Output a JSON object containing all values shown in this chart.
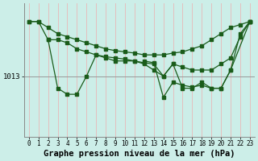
{
  "title": "Graphe pression niveau de la mer (hPa)",
  "background_color": "#cceee8",
  "line_color": "#1a5c1a",
  "grid_color": "#e8b8b8",
  "hline_color": "#999999",
  "hline_value": 1013,
  "x_labels": [
    "0",
    "1",
    "2",
    "3",
    "4",
    "5",
    "6",
    "7",
    "8",
    "9",
    "10",
    "11",
    "12",
    "13",
    "14",
    "15",
    "16",
    "17",
    "18",
    "19",
    "20",
    "21",
    "22",
    "23"
  ],
  "line1_x": [
    0,
    1,
    2,
    3,
    4,
    5,
    6,
    7,
    8,
    9,
    10,
    11,
    12,
    13,
    14,
    15,
    16,
    17,
    18,
    19,
    20,
    21,
    22,
    23
  ],
  "line1_y": [
    1022,
    1022,
    1021,
    1020,
    1019.5,
    1019,
    1018.5,
    1018,
    1017.5,
    1017.2,
    1017,
    1016.8,
    1016.5,
    1016.5,
    1016.5,
    1016.8,
    1017,
    1017.5,
    1018,
    1019,
    1020,
    1021,
    1021.5,
    1022
  ],
  "line2_x": [
    2,
    3,
    4,
    5,
    6,
    7,
    8,
    9,
    10,
    11,
    12,
    13,
    14,
    15,
    16,
    17,
    18,
    19,
    20,
    21,
    23
  ],
  "line2_y": [
    1019,
    1011,
    1010,
    1010,
    1013,
    1016.5,
    1016,
    1015.5,
    1015.5,
    1015.5,
    1015,
    1014,
    1013,
    1015,
    1011,
    1011,
    1012,
    1011,
    1011,
    1014,
    1022
  ],
  "line3_x": [
    0,
    1,
    2,
    3,
    4,
    5,
    6,
    7,
    8,
    9,
    10,
    11,
    12,
    13,
    14,
    15,
    16,
    17,
    18,
    19,
    20,
    21,
    22,
    23
  ],
  "line3_y": [
    1022,
    1022,
    1019,
    1019,
    1018.5,
    1017.5,
    1017,
    1016.5,
    1016.2,
    1016,
    1015.8,
    1015.5,
    1015.2,
    1015,
    1013,
    1015,
    1014.5,
    1014,
    1014,
    1014,
    1015,
    1016,
    1019.5,
    1022
  ],
  "line4_x": [
    12,
    13,
    14,
    15,
    16,
    17,
    18,
    19,
    20,
    21,
    22,
    23
  ],
  "line4_y": [
    1015.5,
    1015.2,
    1009.5,
    1012,
    1011.5,
    1011.2,
    1011.5,
    1011,
    1011,
    1014,
    1020,
    1022
  ],
  "ylim_min": 1003,
  "ylim_max": 1025,
  "title_fontsize": 7.5,
  "tick_fontsize": 5.5
}
